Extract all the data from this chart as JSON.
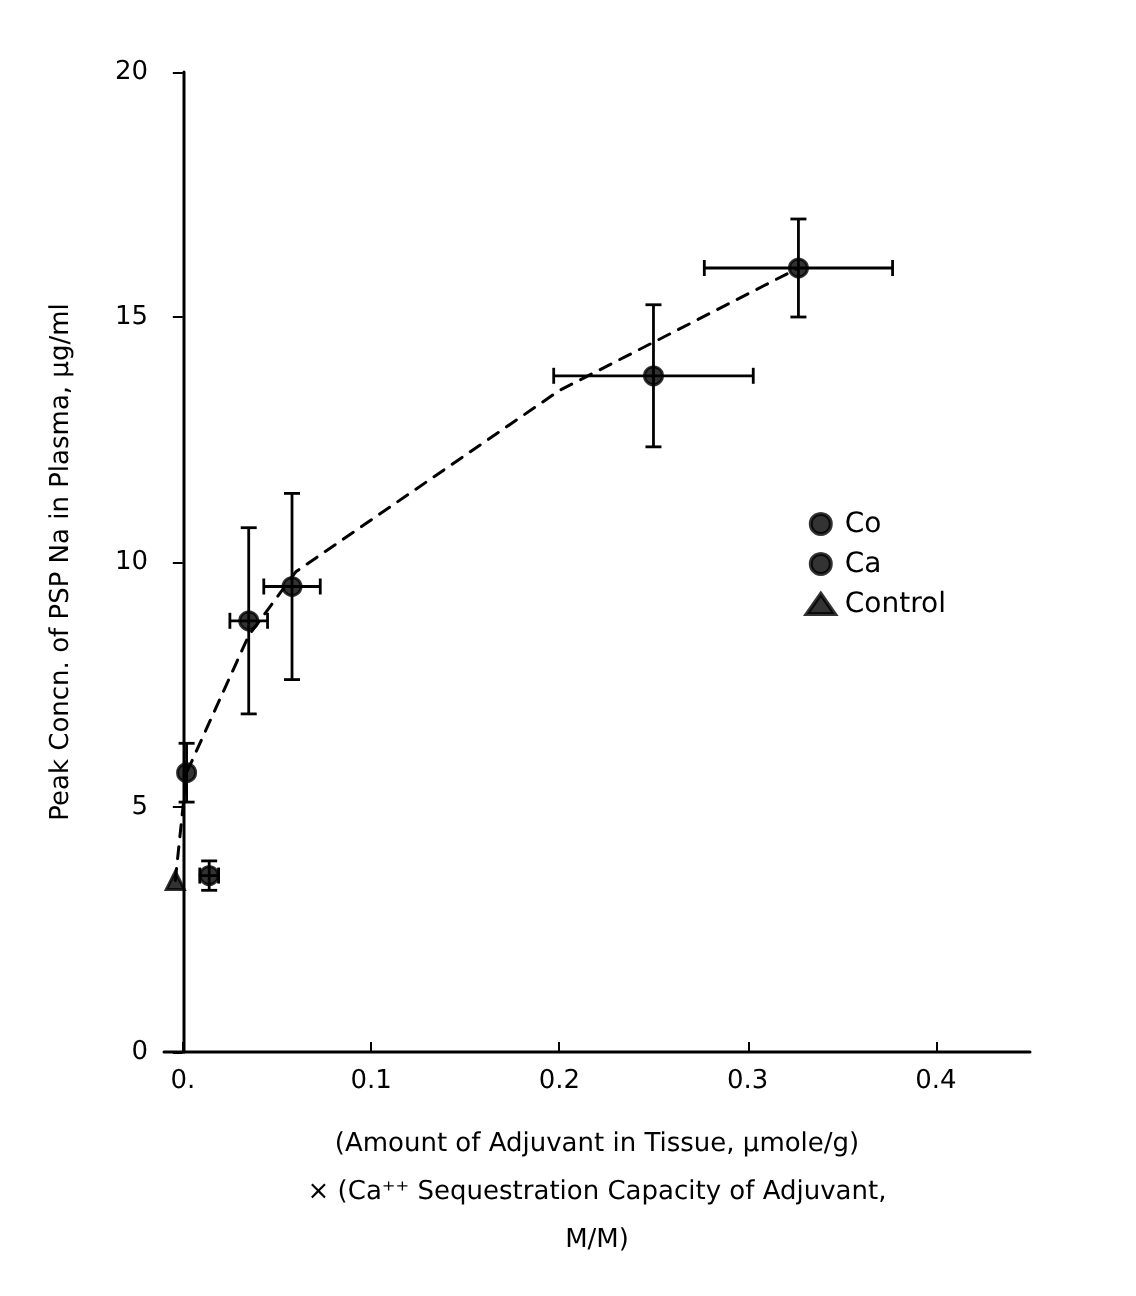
{
  "chart_data": {
    "type": "scatter",
    "xlabel": "(Amount of Adjuvant in Tissue, μmole/g)\n× (Ca⁺⁺ Sequestration Capacity of Adjuvant,\nM/M)",
    "ylabel": "Peak Concn. of PSP Na in Plasma, μg/ml",
    "xlim": [
      -0.01,
      0.45
    ],
    "xticks": [
      {
        "value": 0,
        "label": "0."
      },
      0.1,
      0.2,
      0.3,
      0.4
    ],
    "ylim": [
      0,
      20
    ],
    "yticks": [
      0,
      5,
      10,
      15,
      20
    ],
    "grid": false,
    "legend": "right",
    "series": [
      {
        "name": "Co",
        "marker": "circle",
        "color": "#000000",
        "x": [
          0.014,
          0.035,
          0.327
        ],
        "values": [
          3.6,
          8.8,
          16
        ],
        "errors": [
          0.3,
          1.9,
          1
        ],
        "xerrors": [
          0.005,
          0.01,
          0.05
        ]
      },
      {
        "name": "Ca",
        "marker": "circle",
        "color": "#000000",
        "x": [
          0.002,
          0.058,
          0.25
        ],
        "values": [
          5.7,
          9.5,
          13.8
        ],
        "errors": [
          0.6,
          1.9,
          1.45
        ],
        "xerrors": [
          null,
          0.015,
          0.053
        ]
      },
      {
        "name": "Control",
        "marker": "triangle",
        "color": "#000000",
        "x": [
          -0.004
        ],
        "values": [
          3.5
        ]
      },
      {
        "type": "line",
        "marker": "none",
        "line_style": "dashed",
        "color": "#000000",
        "x": [
          -0.004,
          0.002,
          0.035,
          0.06,
          0.2,
          0.327
        ],
        "values": [
          3.5,
          5.7,
          8.5,
          9.8,
          13.5,
          16
        ]
      }
    ]
  }
}
